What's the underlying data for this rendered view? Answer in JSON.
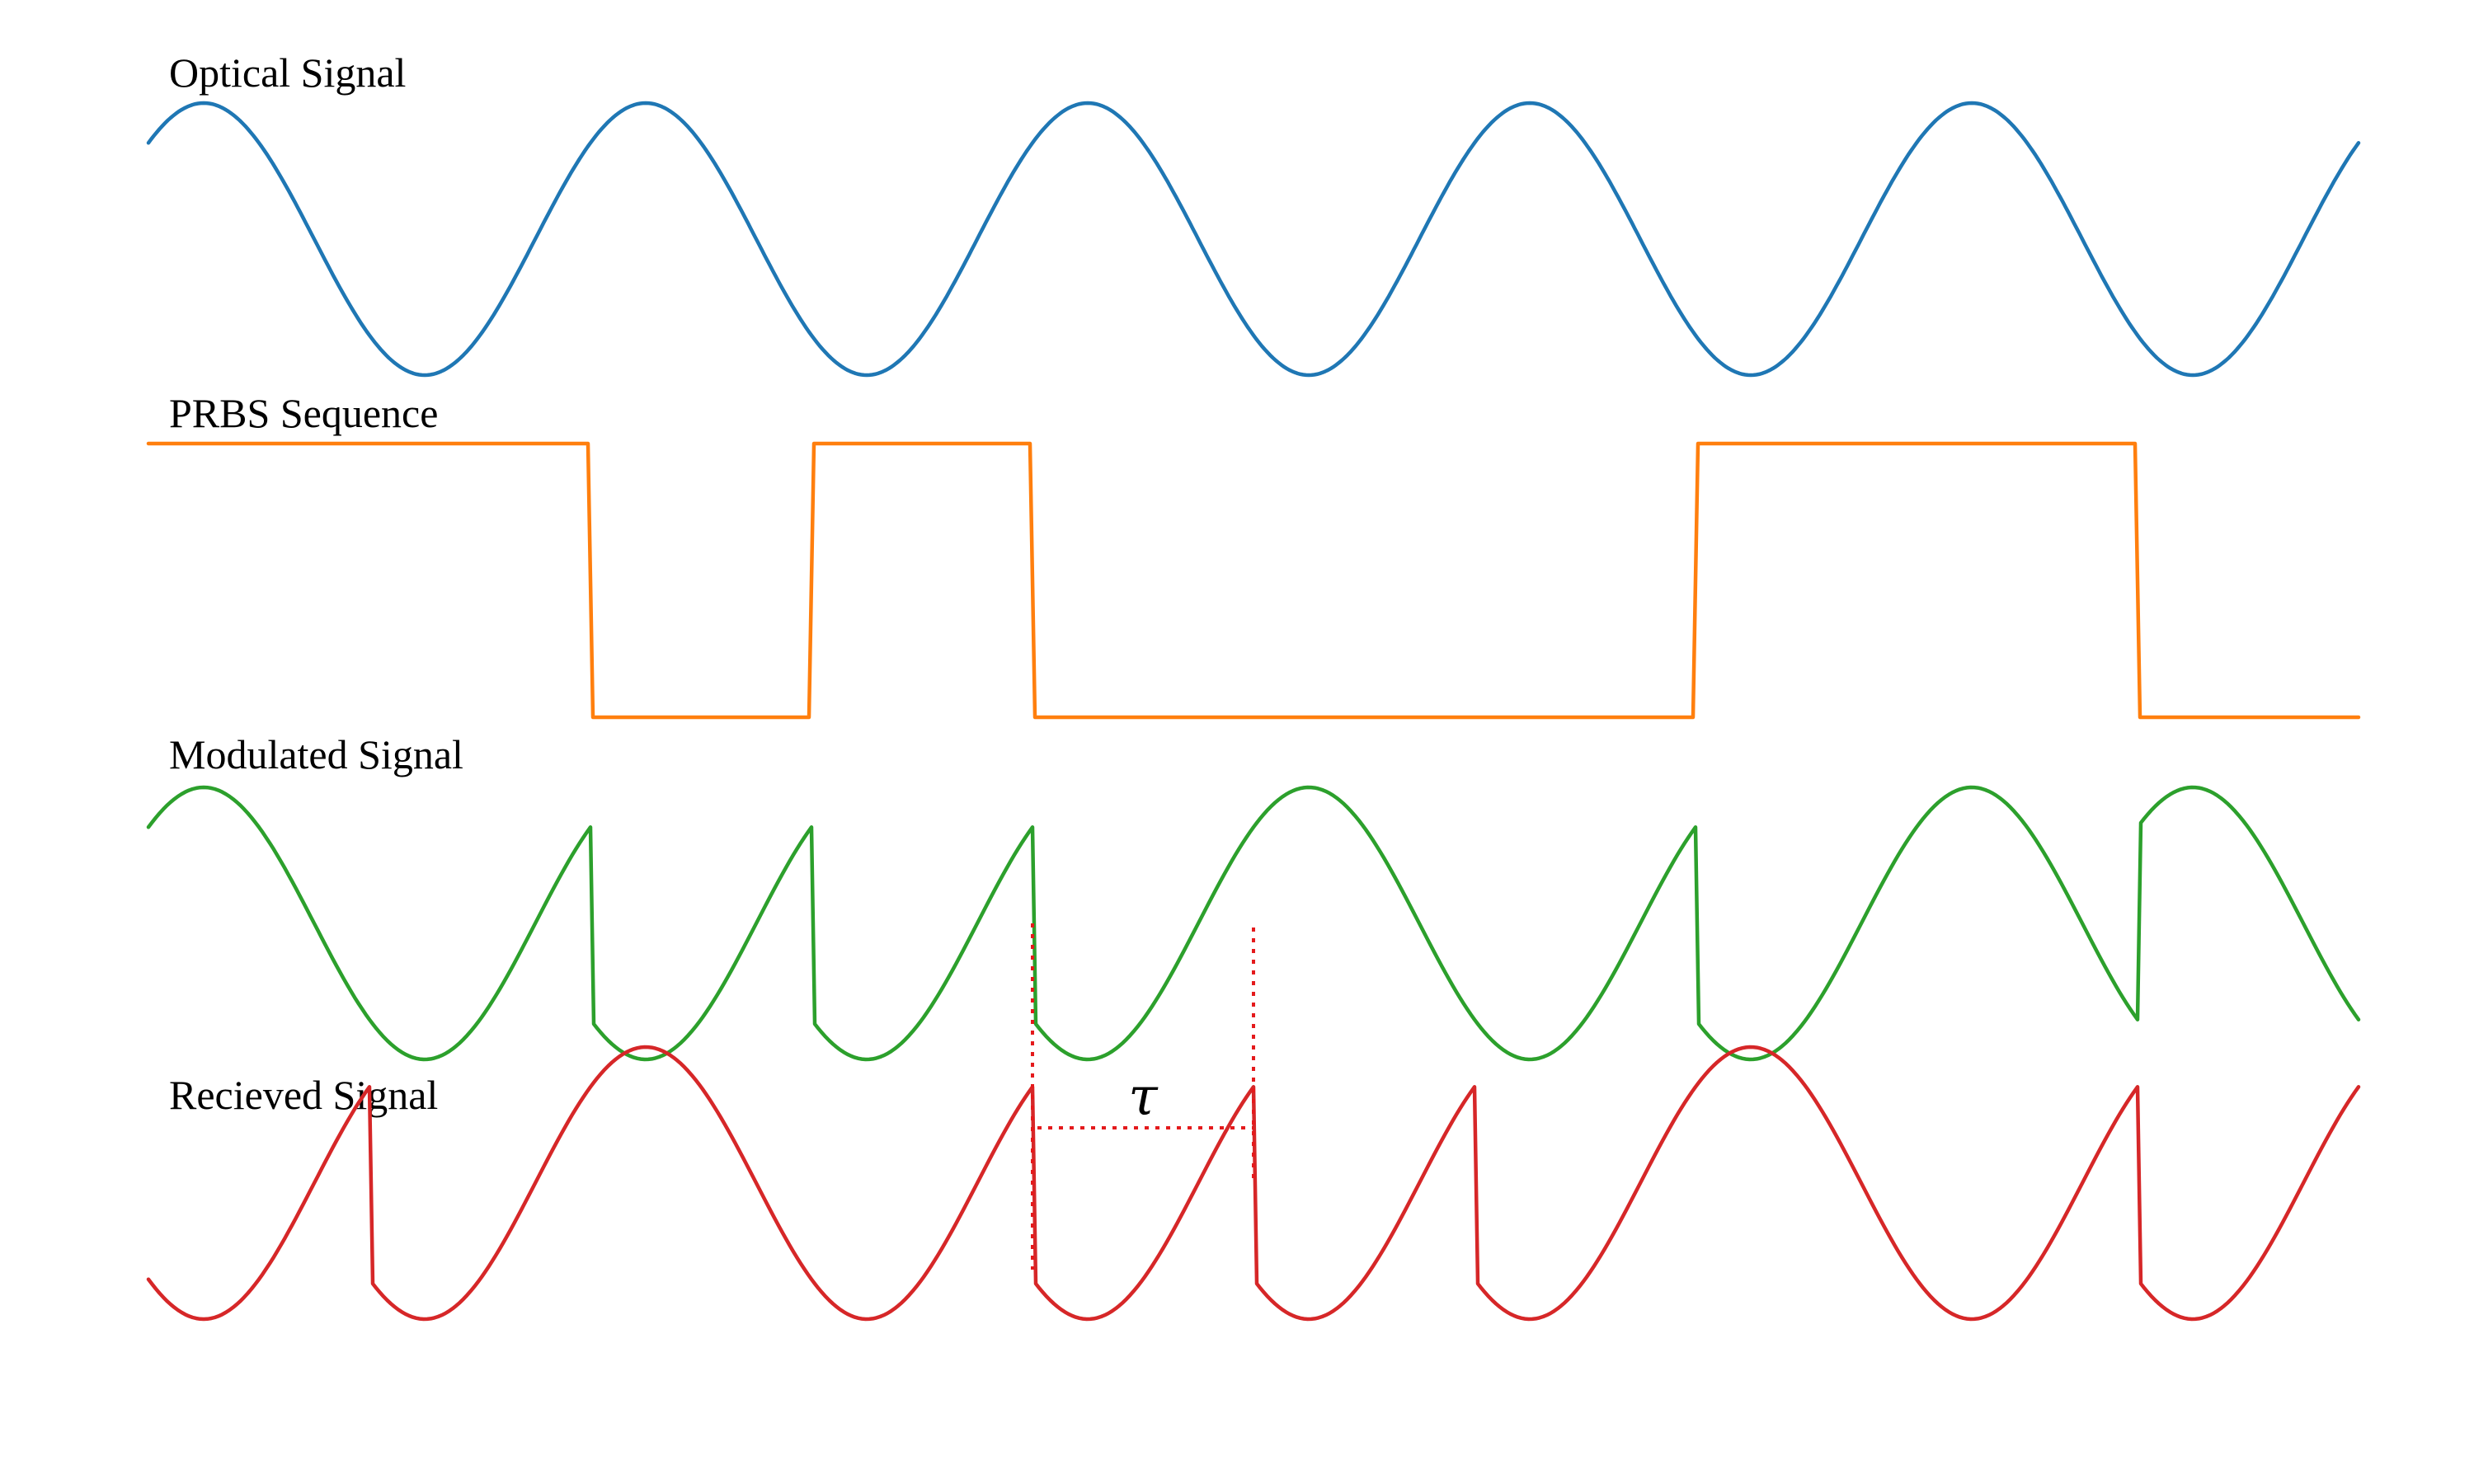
{
  "diagram": {
    "signals": [
      {
        "key": "optical",
        "label": "Optical Signal",
        "color": "#1f77b4"
      },
      {
        "key": "prbs",
        "label": "PRBS Sequence",
        "color": "#ff7f0e"
      },
      {
        "key": "modulated",
        "label": "Modulated Signal",
        "color": "#2ca02c"
      },
      {
        "key": "received",
        "label": "Recieved Signal",
        "color": "#d62728"
      }
    ],
    "prbs_bits": [
      1,
      1,
      0,
      1,
      0,
      0,
      0,
      1,
      1,
      0
    ],
    "received_bits": [
      0,
      1,
      1,
      1,
      0,
      1,
      0,
      0,
      0,
      1
    ],
    "delay_symbol": "τ",
    "marker_color": "#e41a1c"
  }
}
